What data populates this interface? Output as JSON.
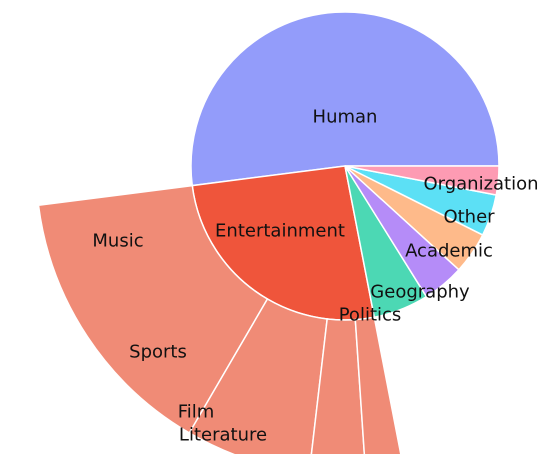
{
  "chart_data": {
    "type": "pie",
    "title": "",
    "categories": [
      "Human",
      "Entertainment",
      "Politics",
      "Geography",
      "Academic",
      "Other",
      "Organization"
    ],
    "values": [
      50,
      25,
      5.6,
      4.2,
      4.2,
      4.2,
      2.9
    ],
    "colors": [
      "#939cfa",
      "#ef553b",
      "#4cd8b4",
      "#b58cf8",
      "#feba8a",
      "#5ce0f5",
      "#fd9bb3"
    ],
    "sub_breakdown": {
      "parent": "Entertainment",
      "color": "#f08b76",
      "categories": [
        "Music",
        "Sports",
        "Film",
        "Literature"
      ],
      "values": [
        14,
        6.3,
        2.8,
        1.9
      ]
    }
  }
}
